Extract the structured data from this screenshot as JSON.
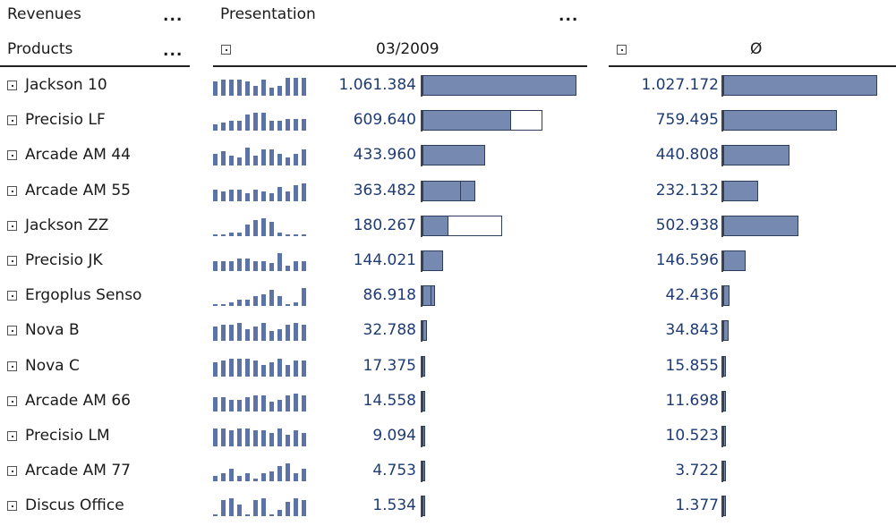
{
  "header": {
    "revenues": "Revenues",
    "products": "Products",
    "presentation": "Presentation",
    "period": "03/2009",
    "avg": "Ø",
    "dots": "..."
  },
  "colors": {
    "bar_fill": "#7689b1",
    "bar_border": "#2f3d5c",
    "value_text": "#1f3b73",
    "spark": "#5b73a6"
  },
  "chart_data": {
    "type": "bar",
    "categories": [
      "Jackson 10",
      "Precisio LF",
      "Arcade AM 44",
      "Arcade AM 55",
      "Jackson ZZ",
      "Precisio JK",
      "Ergoplus Senso",
      "Nova B",
      "Nova C",
      "Arcade AM 66",
      "Precisio LM",
      "Arcade AM 77",
      "Discus Office"
    ],
    "series": [
      {
        "name": "03/2009",
        "values": [
          1061384,
          609640,
          433960,
          363482,
          180267,
          144021,
          86918,
          32788,
          17375,
          14558,
          9094,
          4753,
          1534
        ],
        "labels": [
          "1.061.384",
          "609.640",
          "433.960",
          "363.482",
          "180.267",
          "144.021",
          "86.918",
          "32.788",
          "17.375",
          "14.558",
          "9.094",
          "4.753",
          "1.534"
        ],
        "reference": [
          1050000,
          828000,
          433960,
          265000,
          549000,
          144021,
          60000,
          32788,
          17375,
          14558,
          9094,
          4753,
          1534
        ]
      },
      {
        "name": "Ø",
        "values": [
          1027172,
          759495,
          440808,
          232132,
          502938,
          146596,
          42436,
          34843,
          15855,
          11698,
          10523,
          3722,
          1377
        ],
        "labels": [
          "1.027.172",
          "759.495",
          "440.808",
          "232.132",
          "502.938",
          "146.596",
          "42.436",
          "34.843",
          "15.855",
          "11.698",
          "10.523",
          "3.722",
          "1.377"
        ]
      }
    ],
    "sparklines": [
      [
        7,
        8,
        8,
        8,
        7,
        5,
        8,
        4,
        5,
        9,
        9,
        9
      ],
      [
        3,
        4,
        5,
        5,
        8,
        9,
        9,
        5,
        5,
        6,
        6,
        6
      ],
      [
        6,
        7,
        5,
        4,
        9,
        5,
        8,
        8,
        6,
        4,
        6,
        8
      ],
      [
        6,
        5,
        6,
        6,
        4,
        6,
        5,
        4,
        7,
        5,
        8,
        9
      ],
      [
        1,
        1,
        2,
        2,
        6,
        8,
        9,
        7,
        2,
        1,
        1,
        1
      ],
      [
        4,
        4,
        4,
        5,
        5,
        4,
        4,
        3,
        7,
        2,
        4,
        4
      ],
      [
        1,
        1,
        2,
        3,
        3,
        5,
        6,
        8,
        5,
        1,
        2,
        9
      ],
      [
        7,
        8,
        8,
        9,
        6,
        7,
        9,
        5,
        6,
        8,
        9,
        8
      ],
      [
        7,
        8,
        9,
        9,
        9,
        8,
        6,
        7,
        9,
        6,
        8,
        8
      ],
      [
        7,
        7,
        6,
        6,
        7,
        8,
        8,
        5,
        6,
        8,
        9,
        8
      ],
      [
        8,
        8,
        7,
        8,
        8,
        7,
        7,
        6,
        8,
        5,
        7,
        6
      ],
      [
        2,
        3,
        5,
        2,
        3,
        1,
        3,
        4,
        6,
        7,
        3,
        5
      ],
      [
        1,
        8,
        9,
        6,
        1,
        8,
        9,
        1,
        3,
        7,
        9,
        8
      ]
    ]
  }
}
